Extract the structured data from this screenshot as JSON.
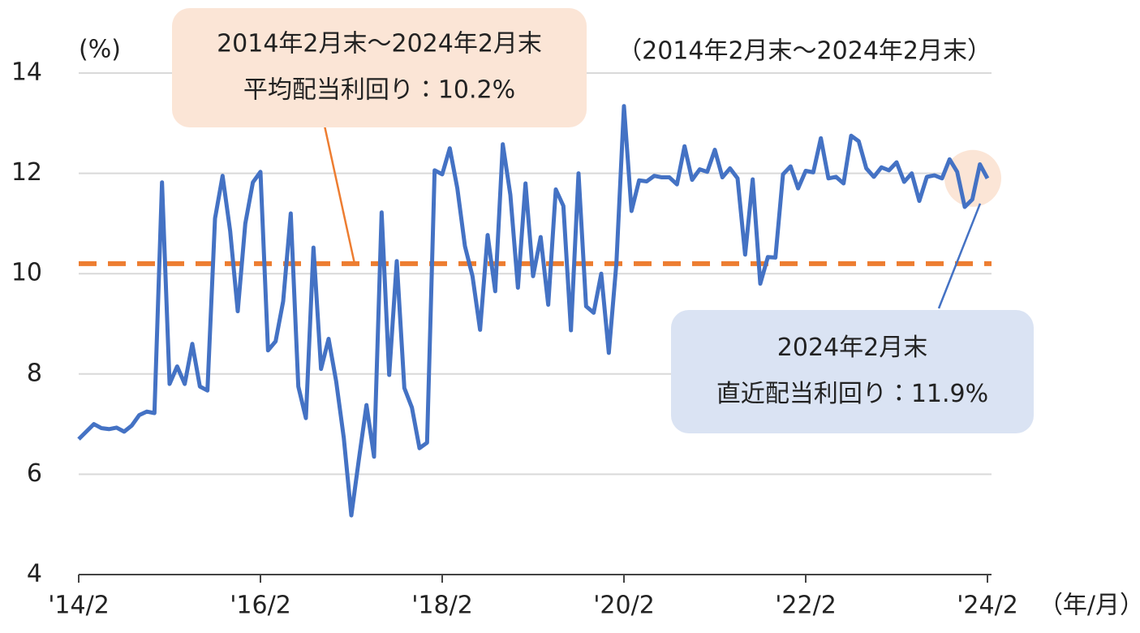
{
  "chart_data": {
    "type": "line",
    "y_label": "(%)",
    "subtitle": "（2014年2月末～2024年2月末）",
    "x_unit": "（年/月）",
    "categories": [
      "'14/2",
      null,
      null,
      null,
      null,
      null,
      null,
      null,
      null,
      null,
      null,
      null,
      null,
      null,
      null,
      null,
      null,
      null,
      null,
      null,
      null,
      null,
      null,
      null,
      "'16/2",
      null,
      null,
      null,
      null,
      null,
      null,
      null,
      null,
      null,
      null,
      null,
      null,
      null,
      null,
      null,
      null,
      null,
      null,
      null,
      null,
      null,
      null,
      null,
      "'18/2",
      null,
      null,
      null,
      null,
      null,
      null,
      null,
      null,
      null,
      null,
      null,
      null,
      null,
      null,
      null,
      null,
      null,
      null,
      null,
      null,
      null,
      null,
      null,
      "'20/2",
      null,
      null,
      null,
      null,
      null,
      null,
      null,
      null,
      null,
      null,
      null,
      null,
      null,
      null,
      null,
      null,
      null,
      null,
      null,
      null,
      null,
      null,
      null,
      "'22/2",
      null,
      null,
      null,
      null,
      null,
      null,
      null,
      null,
      null,
      null,
      null,
      null,
      null,
      null,
      null,
      null,
      null,
      null,
      null,
      null,
      null,
      null,
      null,
      "'24/2"
    ],
    "series": [
      {
        "color": "#4472c4",
        "values": [
          6.7,
          6.85,
          7.0,
          6.92,
          6.9,
          6.93,
          6.85,
          6.97,
          7.18,
          7.25,
          7.22,
          11.82,
          7.8,
          8.15,
          7.8,
          8.6,
          7.75,
          7.67,
          11.1,
          11.95,
          10.85,
          9.25,
          11.0,
          11.82,
          12.03,
          8.47,
          8.65,
          9.45,
          11.2,
          7.75,
          7.12,
          10.52,
          8.1,
          8.7,
          7.85,
          6.73,
          5.18,
          6.3,
          7.38,
          6.35,
          11.22,
          7.98,
          10.25,
          7.72,
          7.33,
          6.52,
          6.63,
          12.06,
          11.98,
          12.5,
          11.7,
          10.55,
          9.95,
          8.88,
          10.77,
          9.65,
          12.58,
          11.57,
          9.72,
          11.8,
          9.95,
          10.73,
          9.38,
          11.68,
          11.35,
          8.87,
          12.0,
          9.35,
          9.22,
          10.0,
          8.42,
          10.2,
          13.34,
          11.25,
          11.86,
          11.84,
          11.95,
          11.92,
          11.92,
          11.78,
          12.54,
          11.87,
          12.08,
          12.03,
          12.47,
          11.92,
          12.1,
          11.9,
          10.38,
          11.88,
          9.8,
          10.33,
          10.32,
          11.98,
          12.14,
          11.7,
          12.05,
          12.02,
          12.7,
          11.9,
          11.93,
          11.8,
          12.75,
          12.64,
          12.1,
          11.93,
          12.12,
          12.06,
          12.22,
          11.83,
          12.0,
          11.45,
          11.93,
          11.96,
          11.9,
          12.28,
          12.03,
          11.33,
          11.48,
          12.18,
          11.9
        ]
      }
    ],
    "reference_line": {
      "value": 10.2,
      "color": "#ed7d31",
      "dashed": true
    },
    "ylim": [
      4,
      14
    ],
    "yticks": [
      4,
      6,
      8,
      10,
      12,
      14
    ],
    "grid": true,
    "annotations": [
      {
        "lines": [
          "2014年2月末～2024年2月末",
          "平均配当利回り：10.2%"
        ],
        "color": "#fbe5d6",
        "line_color": "#ed7d31"
      },
      {
        "lines": [
          "2024年2月末",
          "直近配当利回り：11.9%"
        ],
        "color": "#dae3f3",
        "line_color": "#4472c4"
      }
    ]
  }
}
